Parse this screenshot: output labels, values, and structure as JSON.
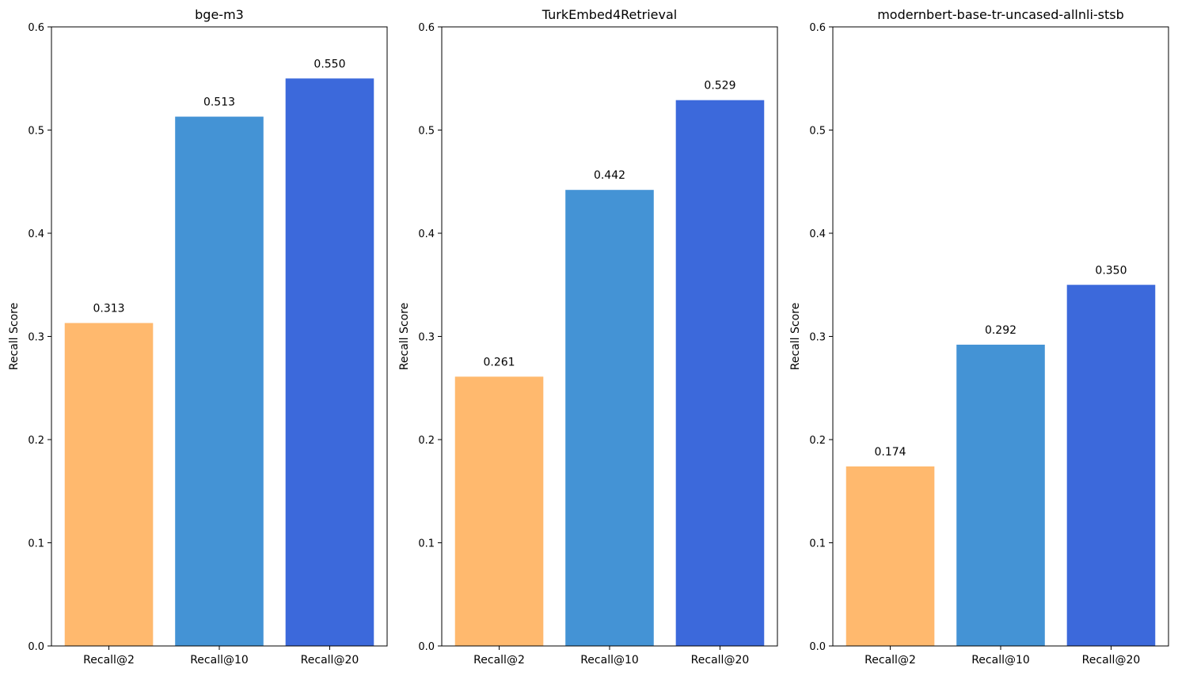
{
  "chart_data": [
    {
      "type": "bar",
      "title": "bge-m3",
      "ylabel": "Recall Score",
      "xlabel": "",
      "categories": [
        "Recall@2",
        "Recall@10",
        "Recall@20"
      ],
      "values": [
        0.313,
        0.513,
        0.55
      ],
      "data_labels": [
        "0.313",
        "0.513",
        "0.550"
      ],
      "ylim": [
        0,
        0.6
      ],
      "yticks": [
        "0.0",
        "0.1",
        "0.2",
        "0.3",
        "0.4",
        "0.5",
        "0.6"
      ],
      "grid": false,
      "colors": [
        "#ffb96e",
        "#4493d5",
        "#3c69db"
      ]
    },
    {
      "type": "bar",
      "title": "TurkEmbed4Retrieval",
      "ylabel": "Recall Score",
      "xlabel": "",
      "categories": [
        "Recall@2",
        "Recall@10",
        "Recall@20"
      ],
      "values": [
        0.261,
        0.442,
        0.529
      ],
      "data_labels": [
        "0.261",
        "0.442",
        "0.529"
      ],
      "ylim": [
        0,
        0.6
      ],
      "yticks": [
        "0.0",
        "0.1",
        "0.2",
        "0.3",
        "0.4",
        "0.5",
        "0.6"
      ],
      "grid": false,
      "colors": [
        "#ffb96e",
        "#4493d5",
        "#3c69db"
      ]
    },
    {
      "type": "bar",
      "title": "modernbert-base-tr-uncased-allnli-stsb",
      "ylabel": "Recall Score",
      "xlabel": "",
      "categories": [
        "Recall@2",
        "Recall@10",
        "Recall@20"
      ],
      "values": [
        0.174,
        0.292,
        0.35
      ],
      "data_labels": [
        "0.174",
        "0.292",
        "0.350"
      ],
      "ylim": [
        0,
        0.6
      ],
      "yticks": [
        "0.0",
        "0.1",
        "0.2",
        "0.3",
        "0.4",
        "0.5",
        "0.6"
      ],
      "grid": false,
      "colors": [
        "#ffb96e",
        "#4493d5",
        "#3c69db"
      ]
    }
  ]
}
